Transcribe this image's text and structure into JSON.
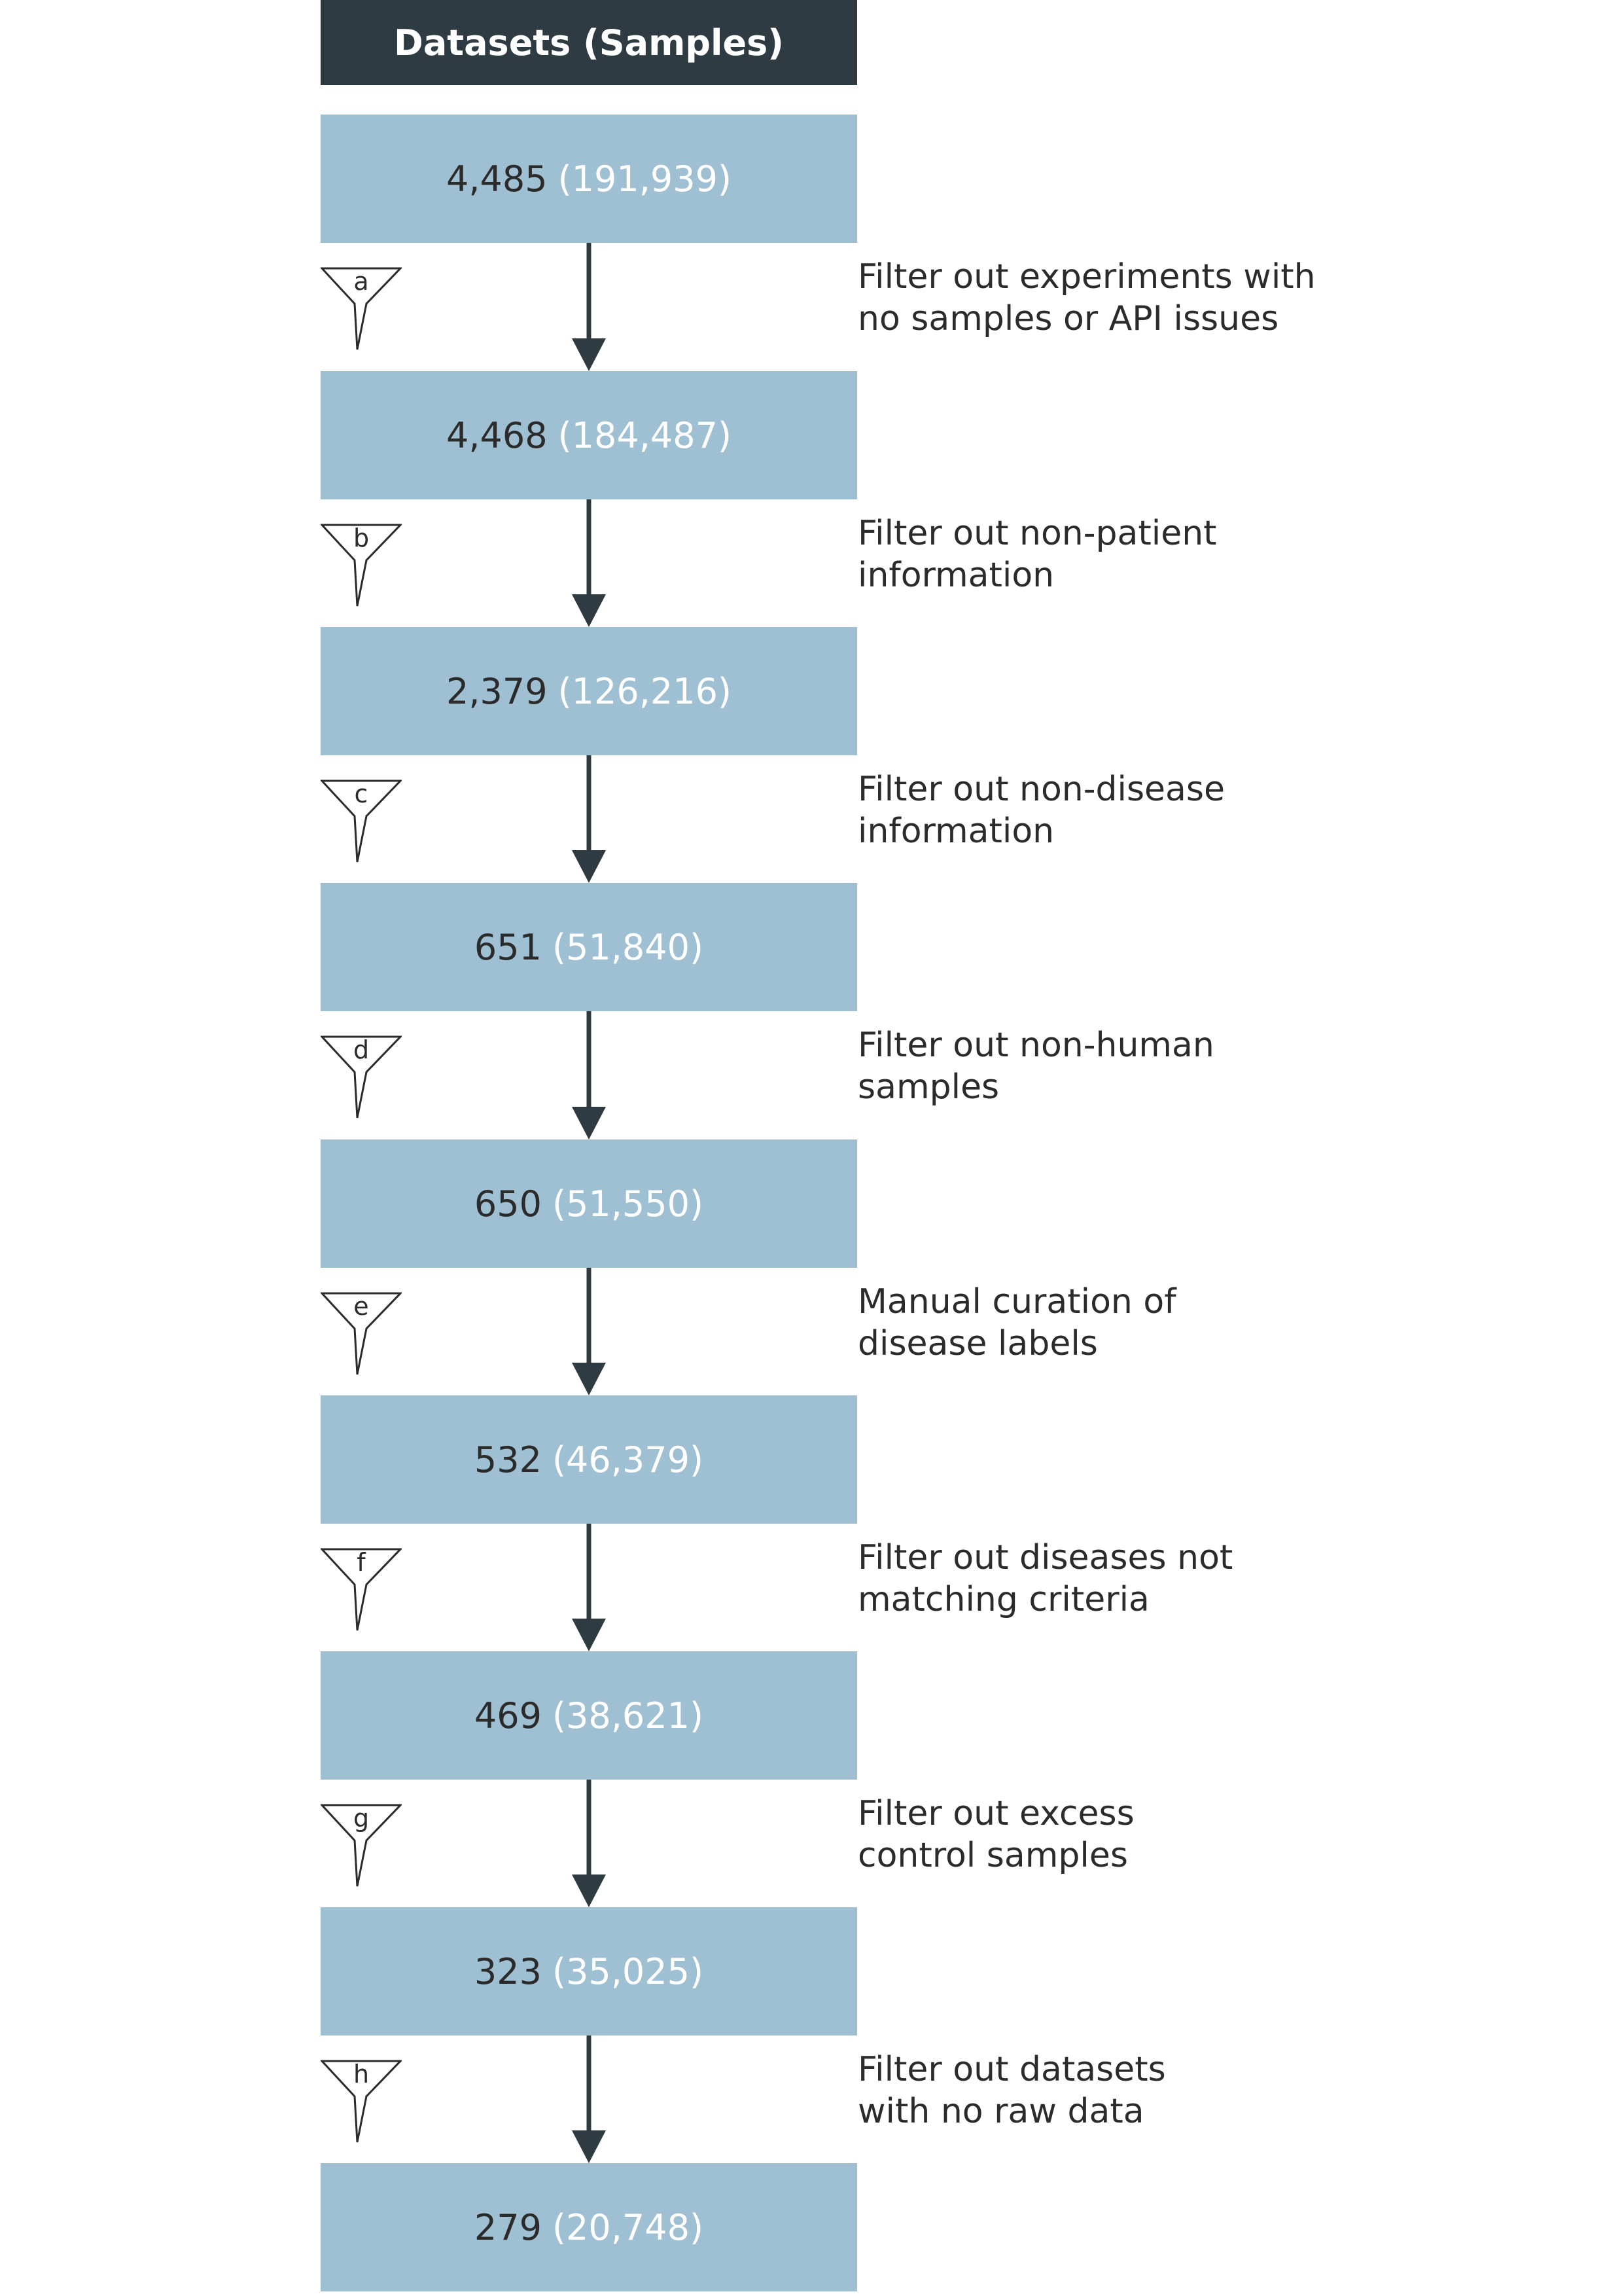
{
  "header": "Datasets (Samples)",
  "colors": {
    "header_bg": "#2f3b43",
    "box_bg": "#9fbfd2",
    "arrow": "#2f3b43",
    "sample_text": "#ffffff"
  },
  "stages": [
    {
      "count": "4,485",
      "samples": "(191,939)"
    },
    {
      "count": "4,468",
      "samples": "(184,487)"
    },
    {
      "count": "2,379",
      "samples": "(126,216)"
    },
    {
      "count": "651",
      "samples": "(51,840)"
    },
    {
      "count": "650",
      "samples": "(51,550)"
    },
    {
      "count": "532",
      "samples": "(46,379)"
    },
    {
      "count": "469",
      "samples": "(38,621)"
    },
    {
      "count": "323",
      "samples": "(35,025)"
    },
    {
      "count": "279",
      "samples": "(20,748)"
    }
  ],
  "filters": [
    {
      "letter": "a",
      "lines": [
        "Filter out experiments with",
        "no samples or API issues"
      ],
      "icon": "filter-funnel-icon"
    },
    {
      "letter": "b",
      "lines": [
        "Filter out non-patient",
        "information"
      ],
      "icon": "filter-funnel-icon"
    },
    {
      "letter": "c",
      "lines": [
        "Filter out non-disease",
        "information"
      ],
      "icon": "filter-funnel-icon"
    },
    {
      "letter": "d",
      "lines": [
        "Filter out non-human",
        "samples"
      ],
      "icon": "filter-funnel-icon"
    },
    {
      "letter": "e",
      "lines": [
        "Manual curation of",
        "disease labels"
      ],
      "icon": "filter-funnel-icon"
    },
    {
      "letter": "f",
      "lines": [
        "Filter out diseases not",
        "matching criteria"
      ],
      "icon": "filter-funnel-icon"
    },
    {
      "letter": "g",
      "lines": [
        "Filter out excess",
        "control samples"
      ],
      "icon": "filter-funnel-icon"
    },
    {
      "letter": "h",
      "lines": [
        "Filter out datasets",
        "with no raw data"
      ],
      "icon": "filter-funnel-icon"
    }
  ]
}
